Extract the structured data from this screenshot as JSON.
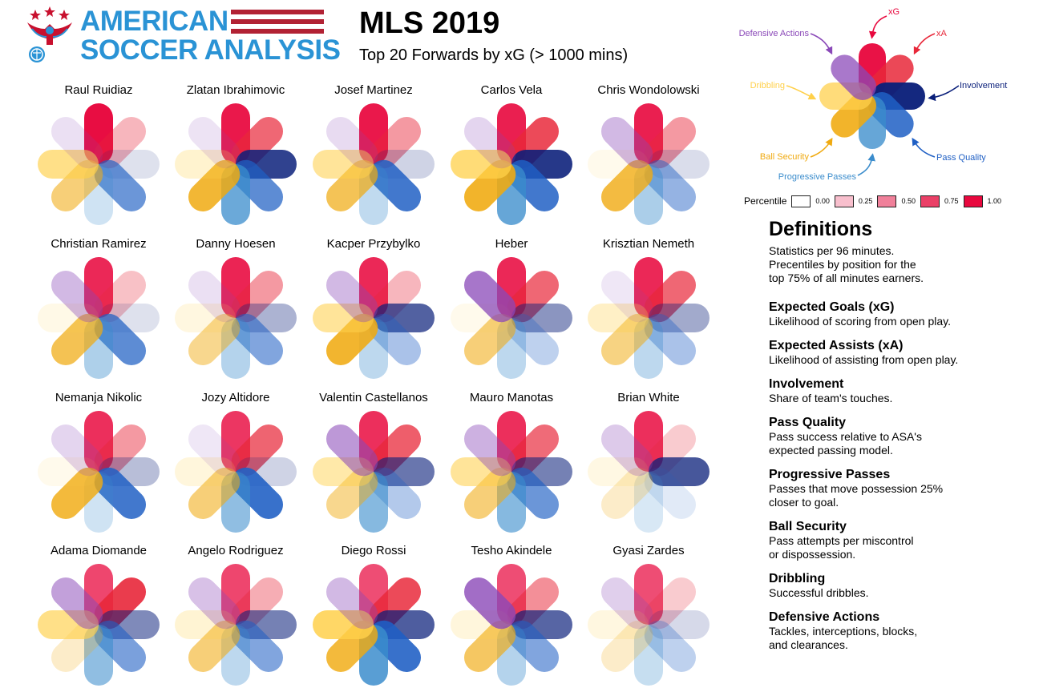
{
  "logo": {
    "line1": "AMERICAN",
    "line2": "SOCCER ANALYSIS"
  },
  "title": "MLS 2019",
  "subtitle": "Top 20 Forwards by xG (> 1000 mins)",
  "colors": {
    "xG": "#e8083e",
    "xA": "#e8283a",
    "Involvement": "#0a1f7a",
    "Pass Quality": "#1f5fc4",
    "Progressive Passes": "#3a8ccc",
    "Ball Security": "#f0aa10",
    "Dribbling": "#ffd04a",
    "Defensive Actions": "#8a48b8",
    "brand_blue": "#2a93d5",
    "brand_red": "#c8102e"
  },
  "chart_data": {
    "type": "radial-petal",
    "metrics": [
      "xG",
      "xA",
      "Involvement",
      "Pass Quality",
      "Progressive Passes",
      "Ball Security",
      "Dribbling",
      "Defensive Actions"
    ],
    "value_type": "percentile",
    "range": [
      0,
      1
    ],
    "players": [
      {
        "name": "Raul Ruidiaz",
        "values": [
          1.0,
          0.3,
          0.08,
          0.65,
          0.2,
          0.55,
          0.65,
          0.12
        ]
      },
      {
        "name": "Zlatan Ibrahimovic",
        "values": [
          0.95,
          0.7,
          0.85,
          0.72,
          0.75,
          0.85,
          0.22,
          0.1
        ]
      },
      {
        "name": "Josef Martinez",
        "values": [
          0.95,
          0.45,
          0.15,
          0.85,
          0.28,
          0.7,
          0.55,
          0.15
        ]
      },
      {
        "name": "Carlos Vela",
        "values": [
          0.92,
          0.85,
          0.9,
          0.85,
          0.78,
          0.9,
          0.75,
          0.18
        ]
      },
      {
        "name": "Chris Wondolowski",
        "values": [
          0.92,
          0.45,
          0.1,
          0.45,
          0.4,
          0.8,
          0.05,
          0.35
        ]
      },
      {
        "name": "Christian Ramirez",
        "values": [
          0.88,
          0.25,
          0.08,
          0.72,
          0.38,
          0.72,
          0.08,
          0.35
        ]
      },
      {
        "name": "Danny Hoesen",
        "values": [
          0.9,
          0.45,
          0.3,
          0.55,
          0.35,
          0.45,
          0.12,
          0.12
        ]
      },
      {
        "name": "Kacper Przybylko",
        "values": [
          0.88,
          0.3,
          0.7,
          0.35,
          0.3,
          0.88,
          0.55,
          0.35
        ]
      },
      {
        "name": "Heber",
        "values": [
          0.88,
          0.7,
          0.45,
          0.25,
          0.3,
          0.55,
          0.05,
          0.75
        ]
      },
      {
        "name": "Krisztian Nemeth",
        "values": [
          0.88,
          0.7,
          0.35,
          0.35,
          0.3,
          0.5,
          0.28,
          0.08
        ]
      },
      {
        "name": "Nemanja Nikolic",
        "values": [
          0.85,
          0.45,
          0.25,
          0.85,
          0.2,
          0.82,
          0.05,
          0.18
        ]
      },
      {
        "name": "Jozy Altidore",
        "values": [
          0.82,
          0.72,
          0.15,
          0.9,
          0.55,
          0.55,
          0.15,
          0.08
        ]
      },
      {
        "name": "Valentin Castellanos",
        "values": [
          0.85,
          0.75,
          0.6,
          0.3,
          0.6,
          0.45,
          0.45,
          0.55
        ]
      },
      {
        "name": "Mauro Manotas",
        "values": [
          0.85,
          0.68,
          0.55,
          0.65,
          0.6,
          0.55,
          0.55,
          0.4
        ]
      },
      {
        "name": "Brian White",
        "values": [
          0.85,
          0.2,
          0.75,
          0.08,
          0.15,
          0.18,
          0.1,
          0.25
        ]
      },
      {
        "name": "Adama Diomande",
        "values": [
          0.75,
          0.92,
          0.5,
          0.58,
          0.55,
          0.18,
          0.65,
          0.5
        ]
      },
      {
        "name": "Angelo Rodriguez",
        "values": [
          0.75,
          0.35,
          0.55,
          0.55,
          0.3,
          0.55,
          0.2,
          0.3
        ]
      },
      {
        "name": "Diego Rossi",
        "values": [
          0.72,
          0.85,
          0.72,
          0.9,
          0.85,
          0.82,
          0.85,
          0.35
        ]
      },
      {
        "name": "Tesho Akindele",
        "values": [
          0.72,
          0.5,
          0.68,
          0.55,
          0.35,
          0.65,
          0.15,
          0.8
        ]
      },
      {
        "name": "Gyasi Zardes",
        "values": [
          0.72,
          0.2,
          0.12,
          0.25,
          0.25,
          0.18,
          0.12,
          0.22
        ]
      }
    ]
  },
  "key": {
    "labels": {
      "xG": "xG",
      "xA": "xA",
      "Involvement": "Involvement",
      "Pass Quality": "Pass Quality",
      "Progressive Passes": "Progressive Passes",
      "Ball Security": "Ball Security",
      "Dribbling": "Dribbling",
      "Defensive Actions": "Defensive Actions"
    },
    "values": [
      0.95,
      0.8,
      0.95,
      0.8,
      0.7,
      0.85,
      0.65,
      0.65
    ]
  },
  "legend": {
    "title": "Percentile",
    "items": [
      {
        "label": "0.00",
        "color": "#ffffff"
      },
      {
        "label": "0.25",
        "color": "#f8bfcd"
      },
      {
        "label": "0.50",
        "color": "#f0809a"
      },
      {
        "label": "0.75",
        "color": "#ea4067"
      },
      {
        "label": "1.00",
        "color": "#e8083e"
      }
    ]
  },
  "definitions": {
    "title": "Definitions",
    "intro": "Statistics per 96 minutes.\nPrecentiles by position for the\ntop 75% of all minutes earners.",
    "items": [
      {
        "term": "Expected Goals (xG)",
        "text": "Likelihood of scoring from open play."
      },
      {
        "term": "Expected Assists (xA)",
        "text": "Likelihood of assisting from open play."
      },
      {
        "term": "Involvement",
        "text": "Share of team's touches."
      },
      {
        "term": "Pass Quality",
        "text": "Pass success relative to ASA's\nexpected passing model."
      },
      {
        "term": "Progressive Passes",
        "text": "Passes that move possession 25%\ncloser to goal."
      },
      {
        "term": "Ball Security",
        "text": "Pass attempts per miscontrol\nor dispossession."
      },
      {
        "term": "Dribbling",
        "text": "Successful dribbles."
      },
      {
        "term": "Defensive Actions",
        "text": "Tackles, interceptions, blocks,\nand clearances."
      }
    ]
  }
}
